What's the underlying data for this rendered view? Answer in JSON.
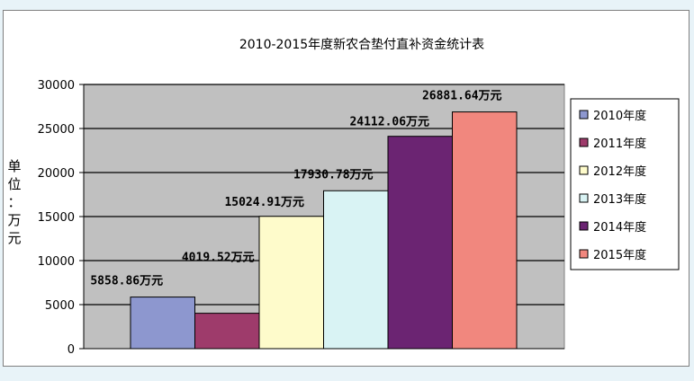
{
  "chart_data": {
    "type": "bar",
    "title": "2010-2015年度新农合垫付直补资金统计表",
    "ylabel": "单位：万元",
    "ylabel_chars": [
      "单",
      "位",
      "：",
      "万",
      "元"
    ],
    "xlabel": "",
    "ylim": [
      0,
      30000
    ],
    "yticks": [
      0,
      5000,
      10000,
      15000,
      20000,
      25000,
      30000
    ],
    "grid": true,
    "legend_position": "right",
    "series": [
      {
        "name": "2010年度",
        "value": 5858.86,
        "label": "5858.86万元",
        "color": "#8d97cf"
      },
      {
        "name": "2011年度",
        "value": 4019.52,
        "label": "4019.52万元",
        "color": "#9e3b6b"
      },
      {
        "name": "2012年度",
        "value": 15024.91,
        "label": "15024.91万元",
        "color": "#fefbcb"
      },
      {
        "name": "2013年度",
        "value": 17930.78,
        "label": "17930.78万元",
        "color": "#d9f3f4"
      },
      {
        "name": "2014年度",
        "value": 24112.06,
        "label": "24112.06万元",
        "color": "#6b2472"
      },
      {
        "name": "2015年度",
        "value": 26881.64,
        "label": "26881.64万元",
        "color": "#f1877e"
      }
    ],
    "plot_background": "#c0c0c0"
  }
}
